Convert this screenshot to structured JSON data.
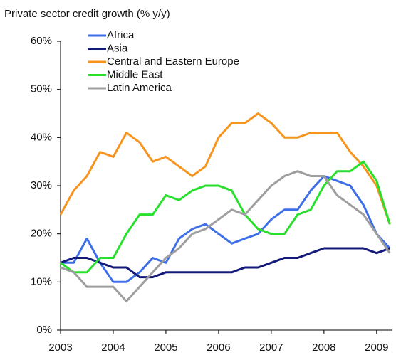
{
  "chart_data": {
    "type": "line",
    "title": "Private sector credit growth (% y/y)",
    "x": [
      2003,
      2003.25,
      2003.5,
      2003.75,
      2004,
      2004.25,
      2004.5,
      2004.75,
      2005,
      2005.25,
      2005.5,
      2005.75,
      2006,
      2006.25,
      2006.5,
      2006.75,
      2007,
      2007.25,
      2007.5,
      2007.75,
      2008,
      2008.25,
      2008.5,
      2008.75,
      2009,
      2009.25
    ],
    "xlim": [
      2003,
      2009.3
    ],
    "xticks": [
      2003,
      2004,
      2005,
      2006,
      2007,
      2008,
      2009
    ],
    "ylim": [
      0,
      60
    ],
    "yticks": [
      {
        "value": 0,
        "label": "0%"
      },
      {
        "value": 10,
        "label": "10%"
      },
      {
        "value": 20,
        "label": "20%"
      },
      {
        "value": 30,
        "label": "30%"
      },
      {
        "value": 40,
        "label": "40%"
      },
      {
        "value": 50,
        "label": "50%"
      },
      {
        "value": 60,
        "label": "60%"
      }
    ],
    "grid": false,
    "legend": "top-left",
    "series": [
      {
        "name": "Africa",
        "color": "#3e6fe8",
        "values": [
          14,
          14,
          19,
          14,
          10,
          10,
          12,
          15,
          14,
          19,
          21,
          22,
          20,
          18,
          19,
          20,
          23,
          25,
          25,
          29,
          32,
          31,
          30,
          26,
          20,
          17
        ]
      },
      {
        "name": "Asia",
        "color": "#141a7a",
        "values": [
          14,
          15,
          15,
          14,
          13,
          13,
          11,
          11,
          12,
          12,
          12,
          12,
          12,
          12,
          13,
          13,
          14,
          15,
          15,
          16,
          17,
          17,
          17,
          17,
          16,
          17
        ]
      },
      {
        "name": "Central and Eastern Europe",
        "color": "#f7941d",
        "values": [
          24,
          29,
          32,
          37,
          36,
          41,
          39,
          35,
          36,
          34,
          32,
          34,
          40,
          43,
          43,
          45,
          43,
          40,
          40,
          41,
          41,
          41,
          37,
          34,
          30,
          22
        ]
      },
      {
        "name": "Middle East",
        "color": "#28e02c",
        "values": [
          14,
          12,
          12,
          15,
          15,
          20,
          24,
          24,
          28,
          27,
          29,
          30,
          30,
          29,
          24,
          21,
          20,
          20,
          24,
          25,
          30,
          33,
          33,
          35,
          31,
          22
        ]
      },
      {
        "name": "Latin America",
        "color": "#9e9e9e",
        "values": [
          13,
          12,
          9,
          9,
          9,
          6,
          9,
          12,
          15,
          17,
          20,
          21,
          23,
          25,
          24,
          27,
          30,
          32,
          33,
          32,
          32,
          28,
          26,
          24,
          20,
          16
        ]
      }
    ]
  }
}
